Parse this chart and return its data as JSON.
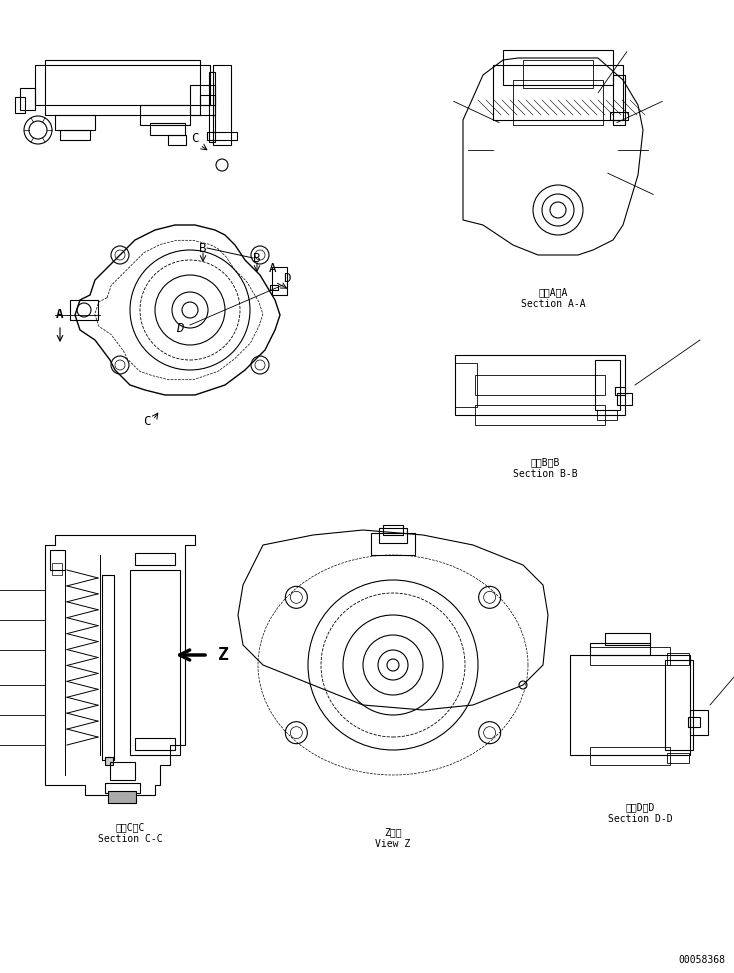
{
  "bg_color": "#ffffff",
  "line_color": "#000000",
  "fig_width": 7.34,
  "fig_height": 9.73,
  "dpi": 100,
  "labels": {
    "section_aa_jp": "断面A－A",
    "section_aa_en": "Section A-A",
    "section_bb_jp": "断面B－B",
    "section_bb_en": "Section B-B",
    "section_cc_jp": "断面C－C",
    "section_cc_en": "Section C-C",
    "section_dd_jp": "断面D－D",
    "section_dd_en": "Section D-D",
    "view_z_jp": "Z　視",
    "view_z_en": "View Z",
    "part_number": "00058368"
  },
  "font_size_labels": 7,
  "font_size_partno": 7
}
